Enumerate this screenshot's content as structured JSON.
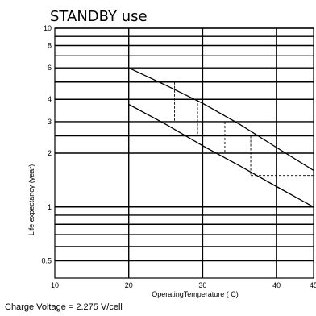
{
  "chart_data": {
    "type": "line",
    "title": "STANDBY use",
    "xlabel": "OperatingTemperature ( C)",
    "ylabel": "Life expectancy (year)",
    "x_scale": "linear",
    "y_scale": "log",
    "xlim": [
      10,
      45
    ],
    "ylim": [
      0.4,
      10
    ],
    "x_ticks": [
      10,
      20,
      30,
      40,
      45
    ],
    "x_tick_labels": [
      "10",
      "20",
      "30",
      "40",
      "45"
    ],
    "y_ticks": [
      0.5,
      1,
      2,
      3,
      4,
      6,
      8,
      10
    ],
    "y_tick_labels": [
      "0.5",
      "1",
      "2",
      "3",
      "4",
      "6",
      "8",
      "10"
    ],
    "y_gridlines": [
      0.5,
      0.6,
      0.7,
      0.8,
      0.9,
      1,
      2,
      2.5,
      3,
      4,
      5,
      6,
      7,
      8,
      9,
      10
    ],
    "x_gridlines": [
      20,
      30,
      40
    ],
    "grid": true,
    "series": [
      {
        "points": [
          [
            20,
            6.0
          ],
          [
            25,
            4.8
          ],
          [
            30,
            3.8
          ],
          [
            35,
            2.9
          ],
          [
            40,
            2.15
          ],
          [
            45,
            1.6
          ]
        ]
      },
      {
        "points": [
          [
            20,
            3.75
          ],
          [
            25,
            2.9
          ],
          [
            30,
            2.2
          ],
          [
            35,
            1.7
          ],
          [
            40,
            1.3
          ],
          [
            45,
            1.0
          ]
        ]
      }
    ],
    "reference_dashes": [
      {
        "from": [
          20,
          5.0
        ],
        "to": [
          26.2,
          5.0
        ]
      },
      {
        "from": [
          20,
          4.0
        ],
        "to": [
          29.3,
          4.0
        ]
      },
      {
        "from": [
          26.2,
          5.0
        ],
        "to": [
          26.2,
          3.0
        ]
      },
      {
        "from": [
          25.0,
          3.0
        ],
        "to": [
          33.0,
          3.0
        ]
      },
      {
        "from": [
          29.3,
          4.0
        ],
        "to": [
          29.3,
          2.5
        ]
      },
      {
        "from": [
          29.3,
          2.5
        ],
        "to": [
          36.5,
          2.5
        ]
      },
      {
        "from": [
          33.0,
          3.0
        ],
        "to": [
          33.0,
          2.0
        ]
      },
      {
        "from": [
          33.0,
          2.0
        ],
        "to": [
          40.0,
          2.0
        ]
      },
      {
        "from": [
          40.0,
          2.2
        ],
        "to": [
          40.0,
          1.5
        ]
      },
      {
        "from": [
          36.5,
          2.5
        ],
        "to": [
          36.5,
          1.5
        ]
      },
      {
        "from": [
          36.5,
          1.5
        ],
        "to": [
          45.0,
          1.5
        ]
      }
    ],
    "note": "Charge Voltage = 2.275 V/cell"
  }
}
